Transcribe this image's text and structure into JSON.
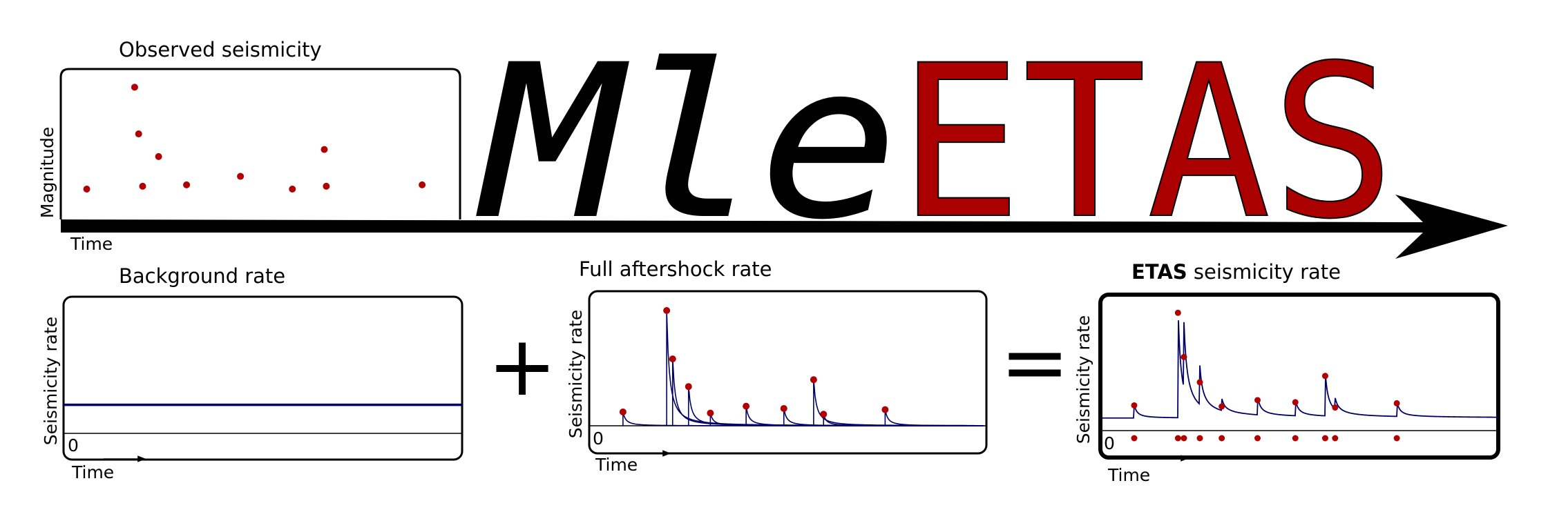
{
  "logo": {
    "part1": "Mle",
    "part2": "ETAS",
    "color1": "#000000",
    "color2": "#aa0000"
  },
  "colors": {
    "event": "#b00000",
    "rate_line": "#000066"
  },
  "observed": {
    "title": "Observed seismicity",
    "ylabel": "Magnitude",
    "xlabel": "Time",
    "events": [
      {
        "t": 0.065,
        "m": 0.2
      },
      {
        "t": 0.185,
        "m": 0.92
      },
      {
        "t": 0.195,
        "m": 0.59
      },
      {
        "t": 0.205,
        "m": 0.22
      },
      {
        "t": 0.245,
        "m": 0.43
      },
      {
        "t": 0.315,
        "m": 0.23
      },
      {
        "t": 0.45,
        "m": 0.29
      },
      {
        "t": 0.58,
        "m": 0.2
      },
      {
        "t": 0.66,
        "m": 0.48
      },
      {
        "t": 0.665,
        "m": 0.22
      },
      {
        "t": 0.905,
        "m": 0.23
      }
    ]
  },
  "background": {
    "title": "Background rate",
    "ylabel": "Seismicity rate",
    "xlabel": "Time",
    "zero_label": "0",
    "level": 0.22
  },
  "plus_sign": "+",
  "aftershock": {
    "title": "Full aftershock rate",
    "ylabel": "Seismicity rate",
    "xlabel": "Time",
    "zero_label": "0",
    "peaks": [
      {
        "t": 0.085,
        "h": 0.12
      },
      {
        "t": 0.195,
        "h": 1.0
      },
      {
        "t": 0.21,
        "h": 0.58
      },
      {
        "t": 0.25,
        "h": 0.34
      },
      {
        "t": 0.305,
        "h": 0.11
      },
      {
        "t": 0.395,
        "h": 0.17
      },
      {
        "t": 0.49,
        "h": 0.15
      },
      {
        "t": 0.565,
        "h": 0.4
      },
      {
        "t": 0.59,
        "h": 0.1
      },
      {
        "t": 0.745,
        "h": 0.14
      }
    ]
  },
  "equals_sign": "=",
  "etas": {
    "title_bold": "ETAS",
    "title_rest": " seismicity rate",
    "ylabel": "Seismicity rate",
    "xlabel": "Time",
    "zero_label": "0"
  }
}
